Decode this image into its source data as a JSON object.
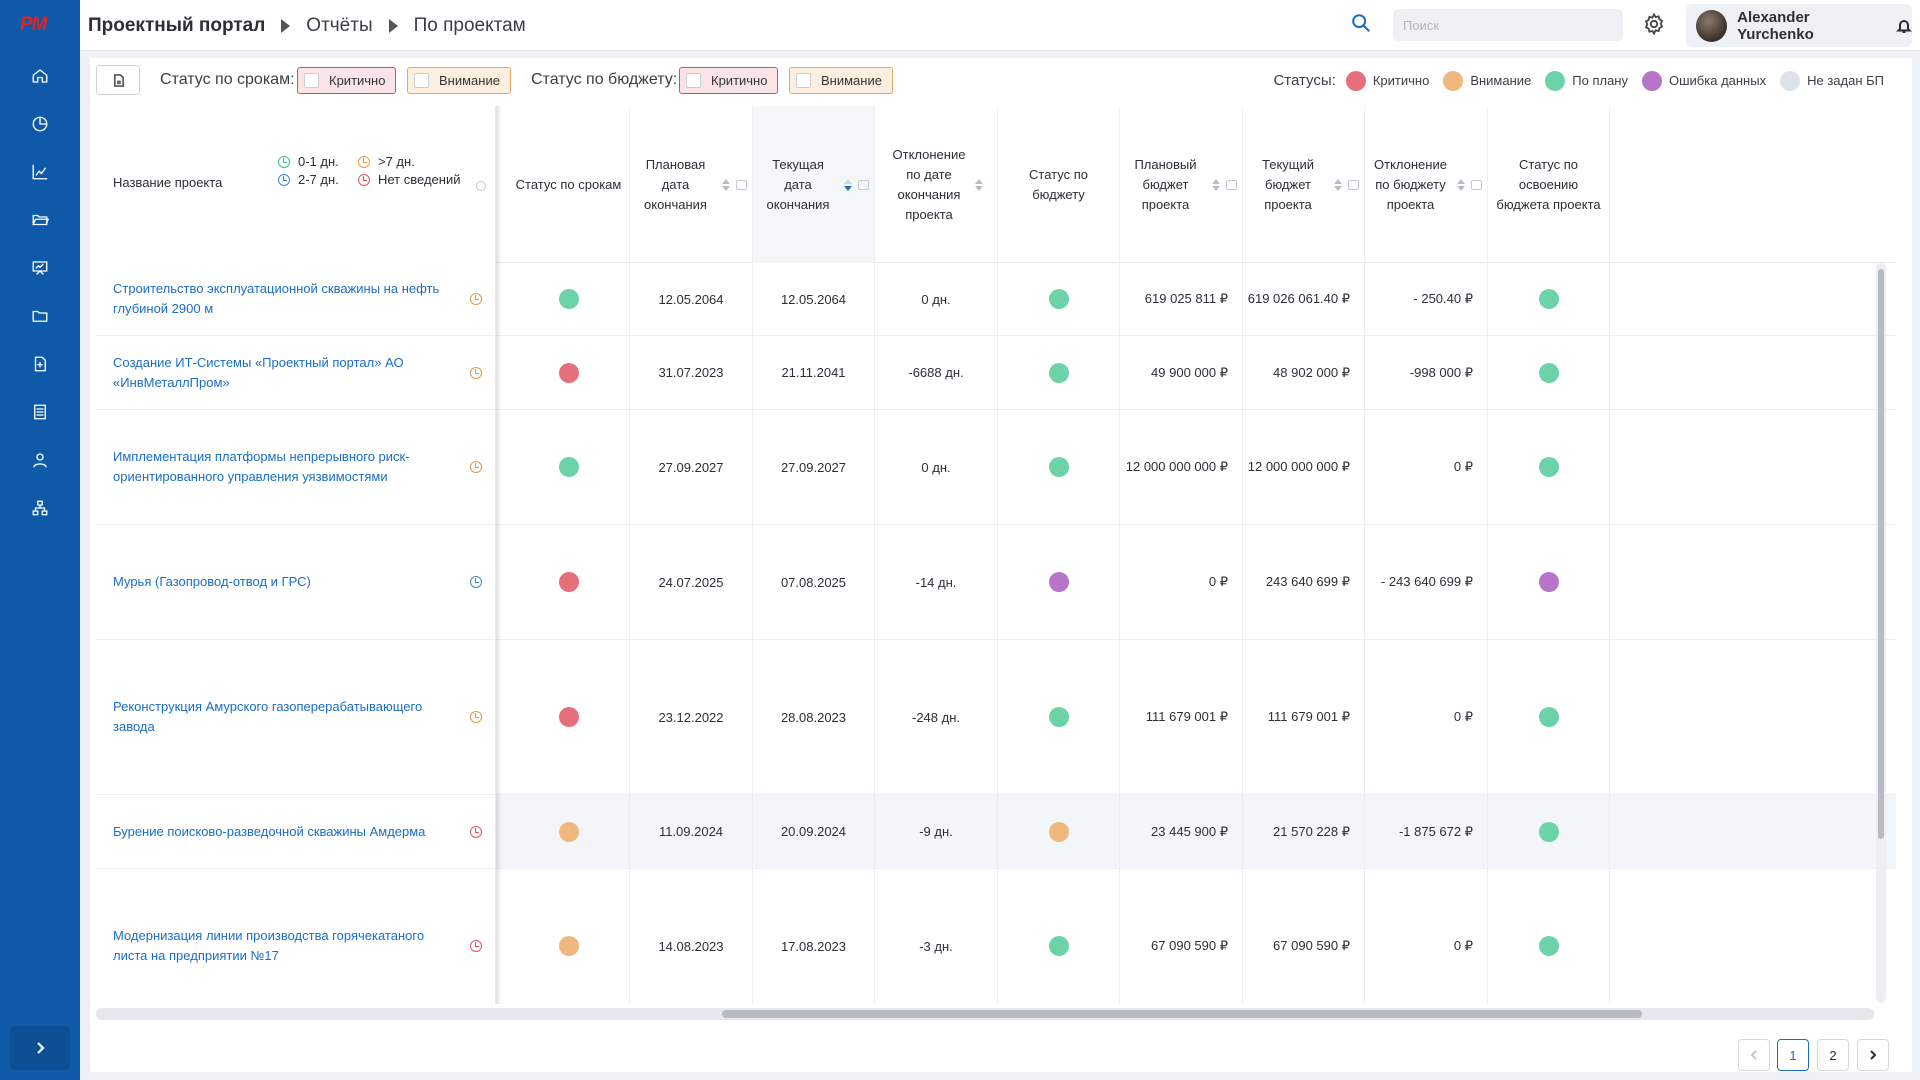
{
  "app": {
    "logo_text": "PM",
    "colors": {
      "sidebar": "#0f5aa8",
      "accent": "#1a6ec5",
      "critical": "#e5707c",
      "attention": "#f0b87f",
      "on_plan": "#6cd3a9",
      "data_error": "#b775c9",
      "not_set": "#dde2e9"
    }
  },
  "sidebar": {
    "icons": [
      "home-icon",
      "pie-chart-icon",
      "bar-chart-icon",
      "folder-open-icon",
      "presentation-icon",
      "folder-icon",
      "file-add-icon",
      "list-icon",
      "user-icon",
      "org-chart-icon"
    ],
    "expand_icon": "chevron-right-icon"
  },
  "header": {
    "breadcrumbs": [
      "Проектный портал",
      "Отчёты",
      "По проектам"
    ],
    "search_placeholder": "Поиск",
    "user_name": "Alexander Yurchenko"
  },
  "filters": {
    "deadline_label": "Статус по срокам:",
    "budget_label": "Статус по бюджету:",
    "critical": "Критично",
    "attention": "Внимание"
  },
  "legend": {
    "title": "Статусы:",
    "items": [
      {
        "label": "Критично",
        "color": "#e5707c"
      },
      {
        "label": "Внимание",
        "color": "#f0b87f"
      },
      {
        "label": "По плану",
        "color": "#6cd3a9"
      },
      {
        "label": "Ошибка данных",
        "color": "#b775c9"
      },
      {
        "label": "Не задан БП",
        "color": "#dde2e9"
      }
    ]
  },
  "table": {
    "name_header": "Название проекта",
    "deadline_legend": [
      {
        "label": "0-1 дн.",
        "color": "#3cbf8a"
      },
      {
        "label": ">7 дн.",
        "color": "#e89a3c"
      },
      {
        "label": "2-7 дн.",
        "color": "#3a85d6"
      },
      {
        "label": "Нет сведений",
        "color": "#e05563"
      }
    ],
    "headers": [
      "Статус по срокам",
      "Плановая дата окончания",
      "Текущая дата окончания",
      "Отклонение по дате окончания проекта",
      "Статус по бюджету",
      "Плановый бюджет проекта",
      "Текущий бюджет проекта",
      "Отклонение по бюджету проекта",
      "Статус по освоению бюджета проекта"
    ],
    "rows": [
      {
        "name": "Строительство эксплуатационной скважины на нефть глубиной 2900 м",
        "clock": "#e89a3c",
        "deadline_status": "#6cd3a9",
        "plan_end": "12.05.2064",
        "current_end": "12.05.2064",
        "date_dev": "0 дн.",
        "budget_status": "#6cd3a9",
        "plan_budget": "619 025 811 ₽",
        "current_budget": "619 026 061.40 ₽",
        "budget_dev": "- 250.40 ₽",
        "spend_status": "#6cd3a9"
      },
      {
        "name": "Создание ИТ-Системы «Проектный портал» АО «ИнвМеталлПром»",
        "clock": "#e89a3c",
        "deadline_status": "#e5707c",
        "plan_end": "31.07.2023",
        "current_end": "21.11.2041",
        "date_dev": "-6688 дн.",
        "budget_status": "#6cd3a9",
        "plan_budget": "49 900 000 ₽",
        "current_budget": "48 902 000 ₽",
        "budget_dev": "-998 000 ₽",
        "spend_status": "#6cd3a9"
      },
      {
        "name": "Имплементация платформы непрерывного риск-ориентированного управления уязвимостями",
        "clock": "#e89a3c",
        "deadline_status": "#6cd3a9",
        "plan_end": "27.09.2027",
        "current_end": "27.09.2027",
        "date_dev": "0 дн.",
        "budget_status": "#6cd3a9",
        "plan_budget": "12 000 000 000 ₽",
        "current_budget": "12 000 000 000 ₽",
        "budget_dev": "0 ₽",
        "spend_status": "#6cd3a9"
      },
      {
        "name": "Мурья (Газопровод-отвод и ГРС)",
        "clock": "#3a85d6",
        "deadline_status": "#e5707c",
        "plan_end": "24.07.2025",
        "current_end": "07.08.2025",
        "date_dev": "-14 дн.",
        "budget_status": "#b775c9",
        "plan_budget": "0 ₽",
        "current_budget": "243 640 699 ₽",
        "budget_dev": "- 243 640 699 ₽",
        "spend_status": "#b775c9"
      },
      {
        "name": "Реконструкция Амурского газоперерабатывающего завода",
        "clock": "#e89a3c",
        "deadline_status": "#e5707c",
        "plan_end": "23.12.2022",
        "current_end": "28.08.2023",
        "date_dev": "-248 дн.",
        "budget_status": "#6cd3a9",
        "plan_budget": "111 679 001 ₽",
        "current_budget": "111 679 001 ₽",
        "budget_dev": "0 ₽",
        "spend_status": "#6cd3a9"
      },
      {
        "name": "Бурение поисково-разведочной скважины Амдерма",
        "clock": "#e05563",
        "deadline_status": "#f0b87f",
        "plan_end": "11.09.2024",
        "current_end": "20.09.2024",
        "date_dev": "-9 дн.",
        "budget_status": "#f0b87f",
        "plan_budget": "23 445 900 ₽",
        "current_budget": "21 570 228 ₽",
        "budget_dev": "-1 875 672 ₽",
        "spend_status": "#6cd3a9"
      },
      {
        "name": "Модернизация линии производства горячекатаного листа на предприятии №17",
        "clock": "#e05563",
        "deadline_status": "#f0b87f",
        "plan_end": "14.08.2023",
        "current_end": "17.08.2023",
        "date_dev": "-3 дн.",
        "budget_status": "#6cd3a9",
        "plan_budget": "67 090 590 ₽",
        "current_budget": "67 090 590 ₽",
        "budget_dev": "0 ₽",
        "spend_status": "#6cd3a9"
      }
    ]
  },
  "pagination": {
    "pages": [
      "1",
      "2"
    ],
    "current": "1"
  }
}
